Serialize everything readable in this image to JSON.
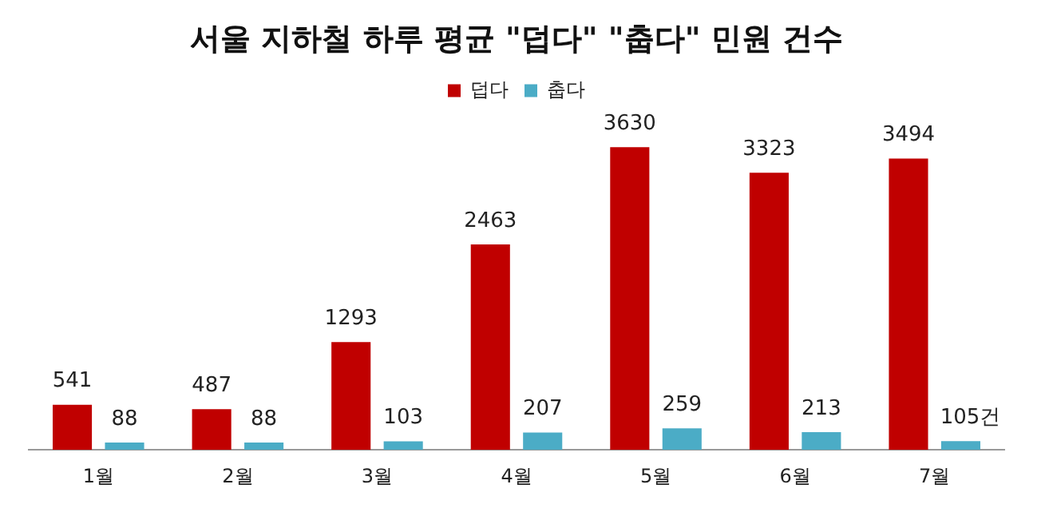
{
  "chart_data": {
    "type": "bar",
    "title": "서울 지하철 하루 평균 \"덥다\" \"춥다\" 민원 건수",
    "categories": [
      "1월",
      "2월",
      "3월",
      "4월",
      "5월",
      "6월",
      "7월"
    ],
    "legend": "top",
    "grid": false,
    "tick_labels": "x",
    "series": [
      {
        "name": "덥다",
        "color": "#c00000",
        "values": [
          541,
          487,
          1293,
          2463,
          3630,
          3323,
          3494
        ],
        "value_labels": [
          "541",
          "487",
          "1293",
          "2463",
          "3630",
          "3323",
          "3494"
        ]
      },
      {
        "name": "춥다",
        "color": "#4bacc6",
        "values": [
          88,
          88,
          103,
          207,
          259,
          213,
          105
        ],
        "value_labels": [
          "88",
          "88",
          "103",
          "207",
          "259",
          "213",
          "105건"
        ]
      }
    ]
  }
}
